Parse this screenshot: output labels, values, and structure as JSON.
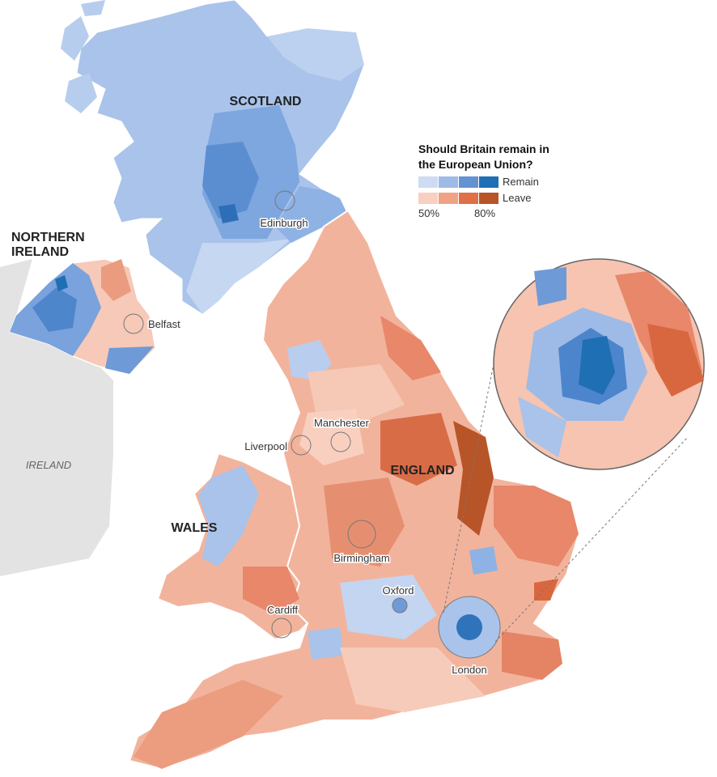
{
  "legend": {
    "title": [
      "Should Britain remain in",
      "the European Union?"
    ],
    "remain": "Remain",
    "leave": "Leave",
    "scale_low": "50%",
    "scale_high": "80%",
    "remain_colors": [
      "#cddcf2",
      "#9dbbe6",
      "#6493d3",
      "#1f6fb4"
    ],
    "leave_colors": [
      "#f9d0c0",
      "#f1a185",
      "#df7048",
      "#b85528"
    ]
  },
  "regions": {
    "scotland": "SCOTLAND",
    "northern_ireland": [
      "NORTHERN",
      "IRELAND"
    ],
    "england": "ENGLAND",
    "wales": "WALES",
    "ireland": "IRELAND"
  },
  "cities": {
    "edinburgh": "Edinburgh",
    "belfast": "Belfast",
    "manchester": "Manchester",
    "liverpool": "Liverpool",
    "birmingham": "Birmingham",
    "oxford": "Oxford",
    "cardiff": "Cardiff",
    "london": "London"
  }
}
